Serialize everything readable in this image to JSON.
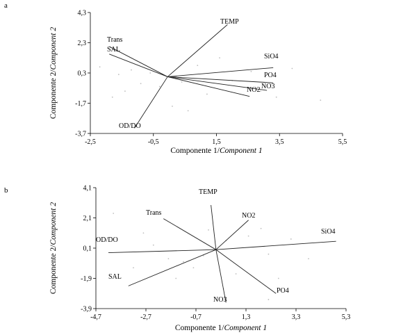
{
  "chart_data": [
    {
      "type": "biplot",
      "panel_label": "a",
      "xlabel": "Componente 1/",
      "xlabel_italic": "Component 1",
      "ylabel": "Componente 2/",
      "ylabel_italic": "Component 2",
      "xlim": [
        -2.5,
        5.5
      ],
      "ylim": [
        -3.7,
        4.3
      ],
      "x_ticks": [
        -2.5,
        -0.5,
        1.5,
        3.5,
        5.5
      ],
      "x_tick_labels": [
        "-2,5",
        "-0,5",
        "1,5",
        "3,5",
        "5,5"
      ],
      "y_ticks": [
        4.3,
        2.3,
        0.3,
        -1.7,
        -3.7
      ],
      "y_tick_labels": [
        "4,3",
        "2,3",
        "0,3",
        "-1,7",
        "-3,7"
      ],
      "origin": [
        -0.05,
        0.05
      ],
      "vectors": [
        {
          "label": "TEMP",
          "x": 1.85,
          "y": 3.5
        },
        {
          "label": "Trans",
          "x": -1.9,
          "y": 2.05
        },
        {
          "label": "SAL",
          "x": -1.9,
          "y": 1.55
        },
        {
          "label": "SiO4",
          "x": 3.3,
          "y": 0.65
        },
        {
          "label": "PO4",
          "x": 3.3,
          "y": -0.35
        },
        {
          "label": "NO3",
          "x": 3.1,
          "y": -0.85
        },
        {
          "label": "NO2",
          "x": 2.55,
          "y": -1.25
        },
        {
          "label": "OD/DO",
          "x": -1.1,
          "y": -3.35
        }
      ],
      "points": [
        [
          -1.6,
          0.2
        ],
        [
          -1.2,
          0.5
        ],
        [
          -0.9,
          -0.4
        ],
        [
          -0.6,
          0.3
        ],
        [
          -1.4,
          -0.9
        ],
        [
          -0.3,
          -0.6
        ],
        [
          0.4,
          -0.3
        ],
        [
          0.9,
          0.8
        ],
        [
          1.2,
          -1.1
        ],
        [
          2.0,
          -0.2
        ],
        [
          2.6,
          0.4
        ],
        [
          3.4,
          -1.3
        ],
        [
          4.8,
          -1.5
        ],
        [
          3.9,
          0.6
        ],
        [
          0.1,
          -1.9
        ],
        [
          -1.8,
          -1.3
        ],
        [
          1.6,
          1.3
        ],
        [
          2.9,
          -0.9
        ],
        [
          0.6,
          -2.2
        ],
        [
          -2.2,
          0.7
        ]
      ]
    },
    {
      "type": "biplot",
      "panel_label": "b",
      "xlabel": "Componente 1/",
      "xlabel_italic": "Component 1",
      "ylabel": "Componente 2/",
      "ylabel_italic": "Component 2",
      "xlim": [
        -4.7,
        5.3
      ],
      "ylim": [
        -3.9,
        4.1
      ],
      "x_ticks": [
        -4.7,
        -2.7,
        -0.7,
        1.3,
        3.3,
        5.3
      ],
      "x_tick_labels": [
        "-4,7",
        "-2,7",
        "-0,7",
        "1,3",
        "3,3",
        "5,3"
      ],
      "y_ticks": [
        4.1,
        2.1,
        0.1,
        -1.9,
        -3.9
      ],
      "y_tick_labels": [
        "4,1",
        "2,1",
        "0,1",
        "-1,9",
        "-3,9"
      ],
      "origin": [
        0.1,
        0.0
      ],
      "vectors": [
        {
          "label": "TEMP",
          "x": -0.1,
          "y": 2.95
        },
        {
          "label": "Trans",
          "x": -2.0,
          "y": 2.05
        },
        {
          "label": "NO2",
          "x": 1.4,
          "y": 1.95
        },
        {
          "label": "SiO4",
          "x": 4.9,
          "y": 0.55
        },
        {
          "label": "OD/DO",
          "x": -4.2,
          "y": -0.2
        },
        {
          "label": "SAL",
          "x": -3.4,
          "y": -2.4
        },
        {
          "label": "NO3",
          "x": 0.5,
          "y": -3.5
        },
        {
          "label": "PO4",
          "x": 2.5,
          "y": -2.9
        }
      ],
      "points": [
        [
          -1.8,
          -0.6
        ],
        [
          -1.2,
          -0.8
        ],
        [
          -0.8,
          -1.2
        ],
        [
          -0.4,
          -0.4
        ],
        [
          0.5,
          0.6
        ],
        [
          1.4,
          0.9
        ],
        [
          2.2,
          -0.3
        ],
        [
          3.1,
          0.7
        ],
        [
          -2.4,
          0.3
        ],
        [
          -0.2,
          1.3
        ],
        [
          0.9,
          -1.6
        ],
        [
          2.6,
          -1.9
        ],
        [
          -1.5,
          -1.9
        ],
        [
          1.9,
          1.4
        ],
        [
          -3.2,
          -1.2
        ],
        [
          3.8,
          -0.6
        ],
        [
          -4.0,
          2.4
        ],
        [
          2.2,
          -3.3
        ],
        [
          0.4,
          -2.6
        ],
        [
          -2.8,
          1.1
        ]
      ]
    }
  ]
}
